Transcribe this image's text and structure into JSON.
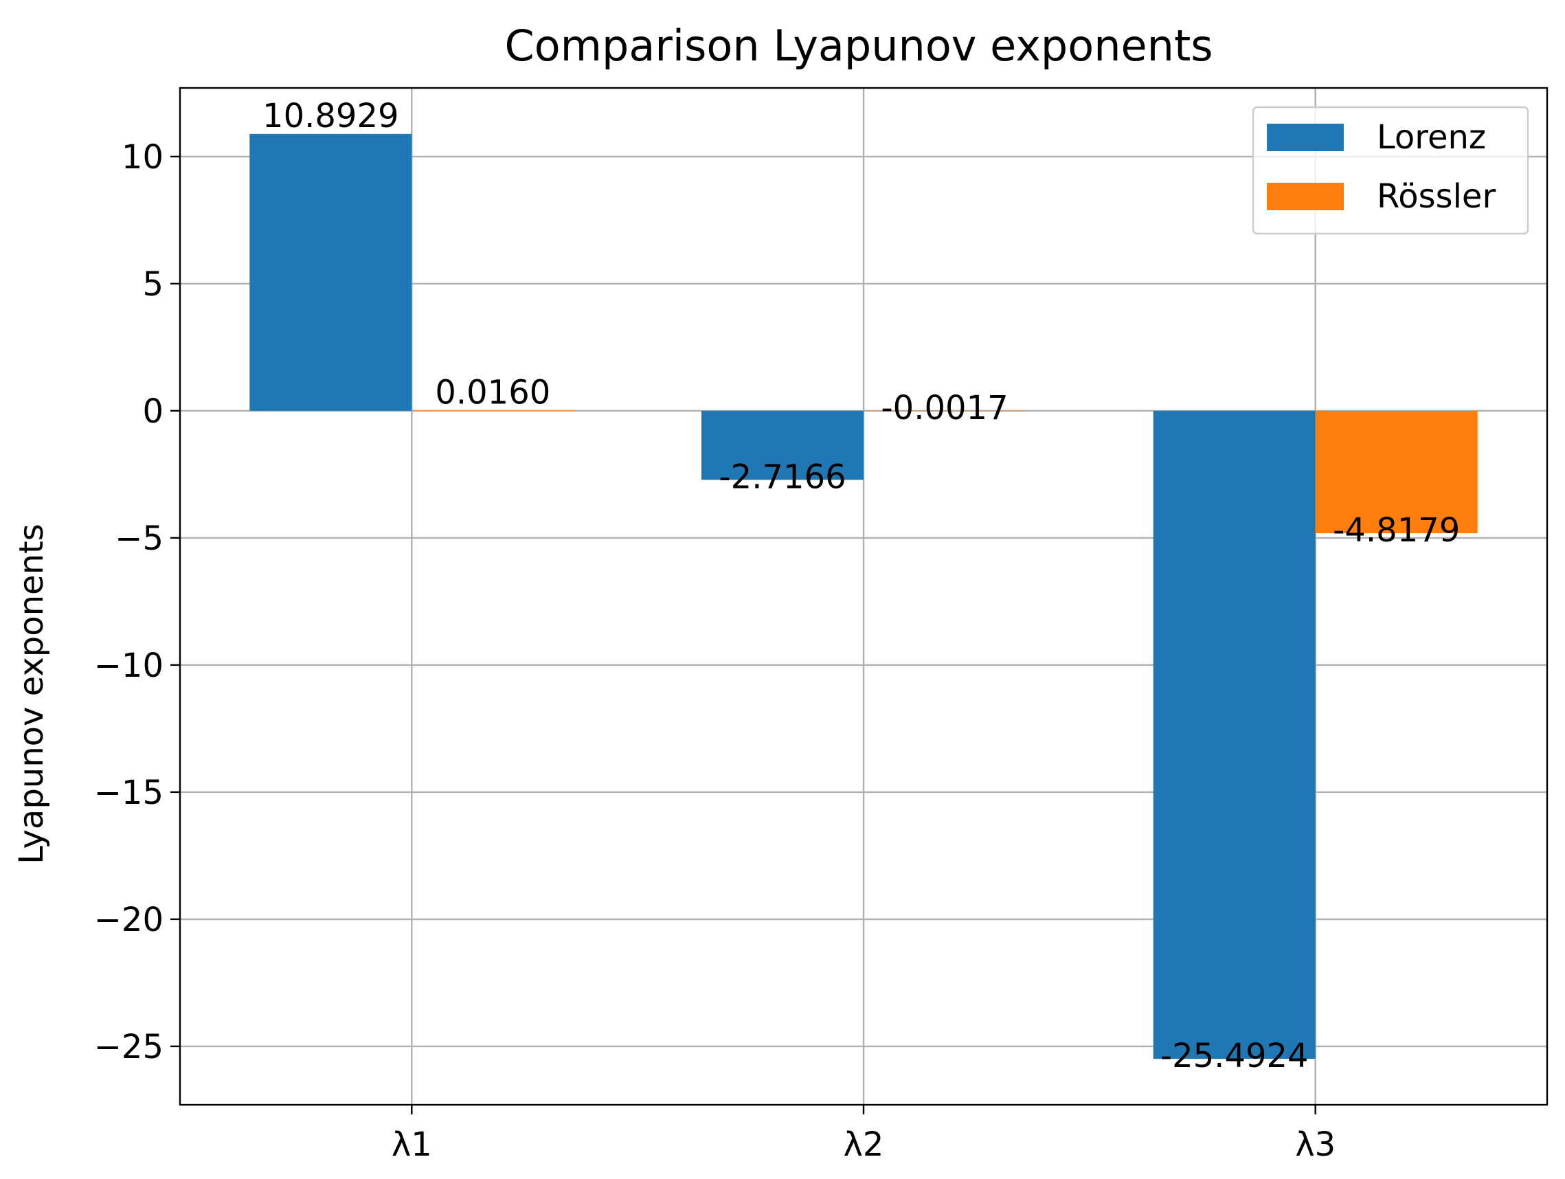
{
  "chart_data": {
    "type": "bar",
    "title": "Comparison Lyapunov exponents",
    "xlabel": "",
    "ylabel": "Lyapunov exponents",
    "categories": [
      "λ1",
      "λ2",
      "λ3"
    ],
    "series": [
      {
        "name": "Lorenz",
        "color": "#1f77b4",
        "values": [
          10.8929,
          -2.7166,
          -25.4924
        ],
        "labels": [
          "10.8929",
          "-2.7166",
          "-25.4924"
        ]
      },
      {
        "name": "Rössler",
        "color": "#ff7f0e",
        "values": [
          0.016,
          -0.0017,
          -4.8179
        ],
        "labels": [
          "0.0160",
          "-0.0017",
          "-4.8179"
        ]
      }
    ],
    "ylim": [
      -27.3,
      12.7
    ],
    "yticks": [
      10,
      5,
      0,
      -5,
      -10,
      -15,
      -20,
      -25
    ],
    "ytick_labels": [
      "10",
      "5",
      "0",
      "−5",
      "−10",
      "−15",
      "−20",
      "−25"
    ],
    "grid": true,
    "legend": "top-right"
  }
}
